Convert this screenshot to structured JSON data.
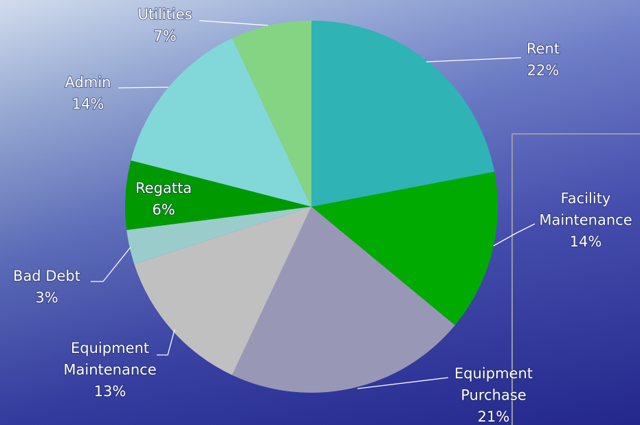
{
  "chart_data": {
    "type": "pie",
    "categories": [
      "Rent",
      "Facility Maintenance",
      "Equipment Purchase",
      "Equipment Maintenance",
      "Bad Debt",
      "Regatta",
      "Admin",
      "Utilities"
    ],
    "values": [
      22,
      14,
      21,
      13,
      3,
      6,
      14,
      7
    ],
    "value_labels": [
      "22%",
      "14%",
      "21%",
      "13%",
      "3%",
      "6%",
      "14%",
      "7%"
    ],
    "colors": [
      "#2fb3b5",
      "#00aa00",
      "#9898b6",
      "#c0c0c0",
      "#9acccc",
      "#009a00",
      "#82d8d8",
      "#84d484"
    ]
  }
}
